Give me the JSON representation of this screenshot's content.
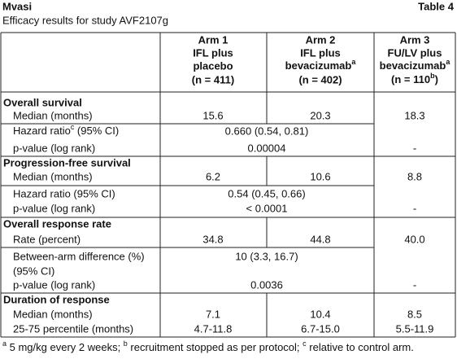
{
  "header": {
    "title": "Mvasi",
    "table_label": "Table 4",
    "subtitle": "Efficacy results for study AVF2107g"
  },
  "table": {
    "columns": [
      {
        "lines": [
          "Arm 1",
          "IFL plus",
          "placebo",
          "(n = 411)"
        ]
      },
      {
        "lines": [
          "Arm 2",
          "IFL plus",
          [
            "bevacizumab",
            {
              "sup": "a"
            }
          ],
          "(n = 402)"
        ]
      },
      {
        "lines": [
          "Arm 3",
          "FU/LV plus",
          [
            "bevacizumab",
            {
              "sup": "a"
            }
          ],
          [
            "(n = 110",
            {
              "sup": "b"
            },
            ")"
          ]
        ]
      }
    ],
    "sections": [
      {
        "title": "Overall survival",
        "rows": [
          {
            "label": "Median (months)",
            "arm1": "15.6",
            "arm2": "20.3",
            "arm3": "18.3"
          },
          {
            "label": [
              "Hazard ratio",
              {
                "sup": "c"
              },
              " (95% CI)"
            ],
            "arms12": "0.660 (0.54, 0.81)"
          },
          {
            "label": "p-value (log rank)",
            "arms12": "0.00004",
            "arm3": "-"
          }
        ]
      },
      {
        "title": "Progression-free survival",
        "rows": [
          {
            "label": "Median (months)",
            "arm1": "6.2",
            "arm2": "10.6",
            "arm3": "8.8"
          },
          {
            "label": "Hazard ratio (95% CI)",
            "arms12": "0.54 (0.45, 0.66)"
          },
          {
            "label": "p-value (log rank)",
            "arms12": "< 0.0001",
            "arm3": "-"
          }
        ]
      },
      {
        "title": "Overall response rate",
        "rows": [
          {
            "label": "Rate (percent)",
            "arm1": "34.8",
            "arm2": "44.8",
            "arm3": "40.0"
          },
          {
            "label": "Between-arm difference (%)",
            "label_line2": "(95% CI)",
            "arms12": "10 (3.3, 16.7)"
          },
          {
            "label": "p-value (log rank)",
            "arms12": "0.0036",
            "arm3": "-"
          }
        ]
      },
      {
        "title": "Duration of response",
        "rows": [
          {
            "label": "Median (months)",
            "arm1": "7.1",
            "arm2": "10.4",
            "arm3": "8.5"
          },
          {
            "label": "25-75 percentile (months)",
            "arm1": "4.7-11.8",
            "arm2": "6.7-15.0",
            "arm3": "5.5-11.9"
          }
        ]
      }
    ]
  },
  "footnote": [
    {
      "sup": "a"
    },
    " 5 mg/kg every 2 weeks; ",
    {
      "sup": "b"
    },
    " recruitment stopped as per protocol; ",
    {
      "sup": "c"
    },
    " relative to control arm."
  ]
}
